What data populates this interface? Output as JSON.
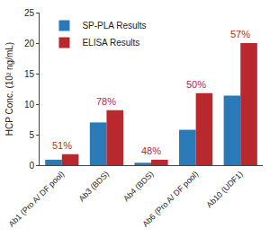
{
  "chart_data": {
    "type": "bar",
    "y_label": "HCP Conc. (10² ng/mL)",
    "categories": [
      "Ab1 (Pro A/ DF pool)",
      "Ab3 (BDS)",
      "Ab4 (BDS)",
      "Ab6 (Pro A/ DF pool)",
      "Ab10 (UDF1)"
    ],
    "series": [
      {
        "name": "SP-PLA Results",
        "color": "#2a7ab8",
        "values": [
          0.9,
          7.0,
          0.4,
          5.8,
          11.4
        ]
      },
      {
        "name": "ELISA Results",
        "color": "#b8282e",
        "values": [
          1.8,
          9.0,
          0.9,
          11.8,
          20.0
        ]
      }
    ],
    "annotations": [
      {
        "category": "Ab1 (Pro A/ DF pool)",
        "text": "51%"
      },
      {
        "category": "Ab3 (BDS)",
        "text": "78%"
      },
      {
        "category": "Ab4 (BDS)",
        "text": "48%"
      },
      {
        "category": "Ab6 (Pro A/ DF pool)",
        "text": "50%"
      },
      {
        "category": "Ab10 (UDF1)",
        "text": "57%"
      }
    ],
    "ylim": [
      0,
      25
    ],
    "yticks": [
      0,
      5,
      10,
      15,
      20,
      25
    ],
    "grid": false,
    "legend": "upper left"
  }
}
